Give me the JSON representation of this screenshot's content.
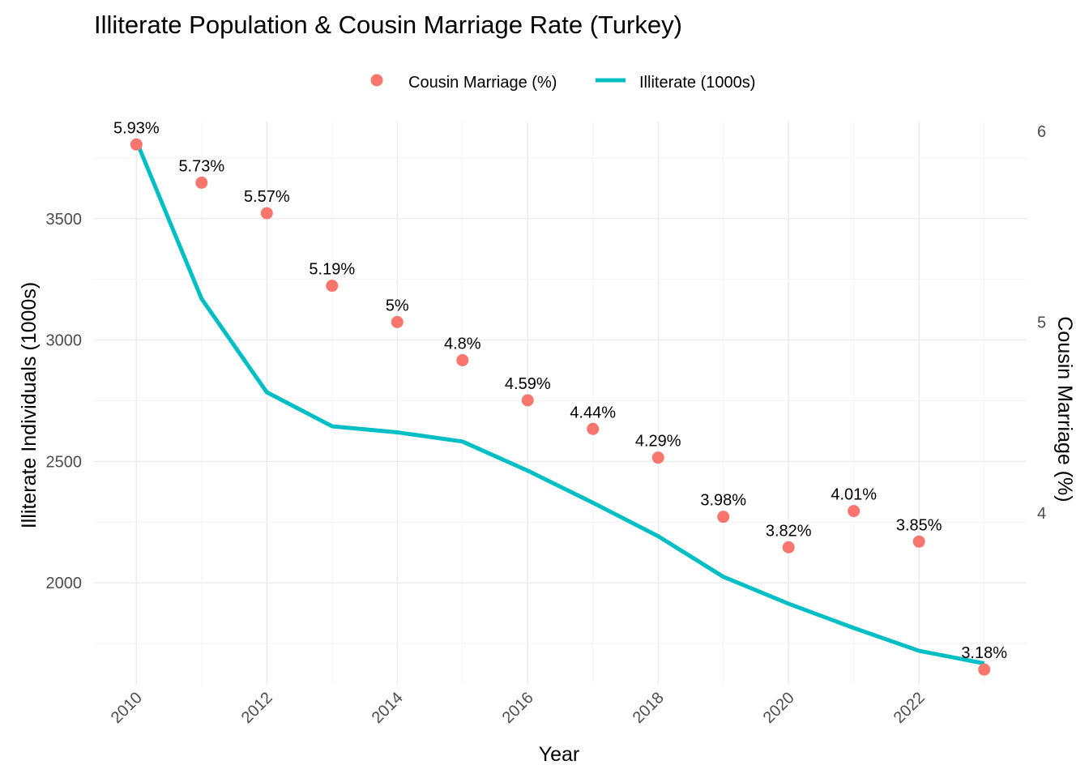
{
  "chart_data": {
    "type": "line",
    "title": "Illiterate Population & Cousin Marriage Rate (Turkey)",
    "xlabel": "Year",
    "ylabel": "Illiterate Individuals (1000s)",
    "y2label": "Cousin Marriage (%)",
    "x": [
      2010,
      2011,
      2012,
      2013,
      2014,
      2015,
      2016,
      2017,
      2018,
      2019,
      2020,
      2021,
      2022,
      2023
    ],
    "x_ticks": [
      "2010",
      "2012",
      "2014",
      "2016",
      "2018",
      "2020",
      "2022"
    ],
    "y_ticks": [
      "2000",
      "2500",
      "3000",
      "3500"
    ],
    "y2_ticks": [
      "4",
      "5",
      "6"
    ],
    "ylim": [
      1580,
      3900
    ],
    "y2lim": [
      3.1,
      6.05
    ],
    "legend_position": "top",
    "grid": true,
    "series": [
      {
        "name": "Cousin Marriage (%)",
        "kind": "points",
        "axis": "right",
        "color": "#F8766D",
        "values": [
          5.93,
          5.73,
          5.57,
          5.19,
          5.0,
          4.8,
          4.59,
          4.44,
          4.29,
          3.98,
          3.82,
          4.01,
          3.85,
          3.18
        ],
        "labels": [
          "5.93%",
          "5.73%",
          "5.57%",
          "5.19%",
          "5%",
          "4.8%",
          "4.59%",
          "4.44%",
          "4.29%",
          "3.98%",
          "3.82%",
          "4.01%",
          "3.85%",
          "3.18%"
        ]
      },
      {
        "name": "Illiterate (1000s)",
        "kind": "line",
        "axis": "left",
        "color": "#00BFC4",
        "values": [
          3820,
          3170,
          2785,
          2645,
          2620,
          2582,
          2462,
          2330,
          2192,
          2025,
          1914,
          1814,
          1720,
          1668
        ]
      }
    ]
  }
}
